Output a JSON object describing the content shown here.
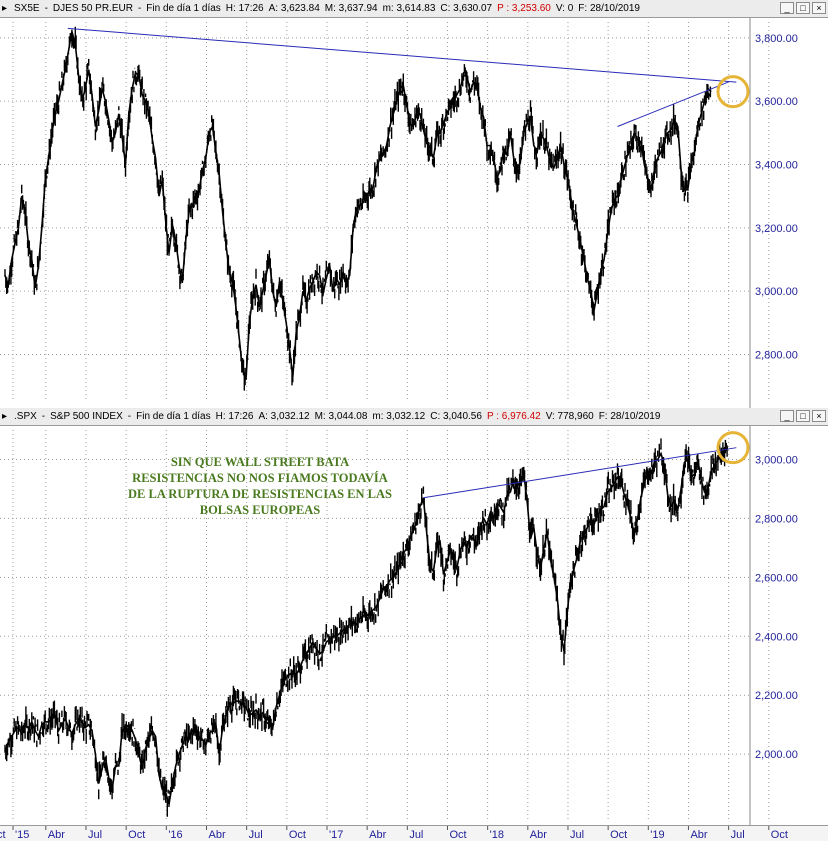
{
  "top_panel": {
    "header": {
      "symbol": "SX5E",
      "name": "DJES 50 PR.EUR",
      "period": "Fin de día 1 días",
      "h": "H: 17:26",
      "a": "A: 3,623.84",
      "m": "M: 3,637.94",
      "mm": "m: 3,614.83",
      "c": "C: 3,630.07",
      "p": "P : 3,253.60",
      "v": "V: 0",
      "f": "F: 28/10/2019"
    }
  },
  "bottom_panel": {
    "header": {
      "symbol": ".SPX",
      "name": "S&P 500 INDEX",
      "period": "Fin de día 1 días",
      "h": "H: 17:26",
      "a": "A: 3,032.12",
      "m": "M: 3,044.08",
      "mm": "m: 3,032.12",
      "c": "C: 3,040.56",
      "p": "P : 6,976.42",
      "v": "V: 778,960",
      "f": "F: 28/10/2019"
    },
    "annotation": "SIN QUE WALL STREET BATA RESISTENCIAS NO NOS FIAMOS TODAVÍA DE LA RUPTURA DE RESISTENCIAS EN LAS BOLSAS EUROPEAS"
  },
  "window_buttons": {
    "minimize": "_",
    "maximize": "□",
    "close": "×"
  },
  "colors": {
    "price": "#000000",
    "trendline": "#2a2ab8",
    "highlight": "#e6b436",
    "grid": "#9c9c9c",
    "axis_text": "#1f1f9a",
    "annotation": "#4a7a1e"
  },
  "chart_data": [
    {
      "type": "line",
      "title": "SX5E - DJES 50 PR.EUR",
      "ylim": [
        2650,
        3850
      ],
      "y_ticks": [
        2800,
        3000,
        3200,
        3400,
        3600,
        3800
      ],
      "y_tick_labels": [
        "2,800.00",
        "3,000.00",
        "3,200.00",
        "3,400.00",
        "3,600.00",
        "3,800.00"
      ],
      "x_months_from_jan2015": [
        0,
        1,
        2,
        3,
        4,
        5,
        6,
        7,
        8,
        9,
        10,
        11,
        12,
        13,
        14,
        15,
        16,
        17,
        18,
        19,
        20,
        21,
        22,
        23,
        24,
        25,
        26,
        27,
        28,
        29,
        30,
        31,
        32,
        33,
        34,
        35,
        36,
        37,
        38,
        39,
        40,
        41,
        42,
        43,
        44,
        45,
        46,
        47,
        48,
        49,
        50,
        51,
        52,
        53,
        54,
        55,
        56,
        57,
        58,
        59,
        60,
        61,
        62,
        63,
        64,
        65,
        66,
        67,
        68,
        69,
        70,
        71,
        72,
        73,
        74,
        75,
        76,
        77,
        78,
        79,
        80,
        81,
        82,
        83,
        84,
        85,
        86,
        87,
        88,
        89,
        90,
        91,
        92,
        93,
        94,
        95,
        96,
        97,
        98,
        99,
        100,
        101,
        102,
        103,
        104,
        105,
        106,
        107,
        108,
        109,
        110,
        111,
        112,
        113,
        114,
        115,
        116,
        117,
        118,
        119,
        120,
        121,
        122,
        123,
        124,
        125,
        126,
        127,
        128,
        129,
        130,
        131,
        132,
        133,
        134,
        135,
        136,
        137,
        138,
        139,
        140,
        141,
        142,
        143,
        144,
        145,
        146,
        147,
        148,
        149,
        150,
        151,
        152,
        153,
        154,
        155,
        156,
        157,
        158,
        159,
        160,
        161,
        162,
        163,
        164,
        165,
        166,
        167,
        168,
        169,
        170,
        171,
        172,
        173,
        174,
        175,
        176,
        177,
        178,
        179,
        180,
        181,
        182,
        183,
        184,
        185,
        186,
        187,
        188,
        189,
        190,
        191,
        192,
        193,
        194,
        195,
        196,
        197,
        198,
        199,
        200,
        201,
        202,
        203,
        204,
        205,
        206,
        207,
        208,
        209,
        210,
        211,
        212,
        213,
        214,
        215,
        216,
        217,
        218,
        219
      ],
      "x_scale_note_months_per_step": 0.25,
      "series": [
        {
          "values": [
            3050,
            3020,
            3100,
            3150,
            3200,
            3300,
            3250,
            3150,
            3100,
            3010,
            3080,
            3200,
            3350,
            3420,
            3500,
            3560,
            3600,
            3650,
            3700,
            3760,
            3820,
            3780,
            3680,
            3600,
            3640,
            3700,
            3620,
            3520,
            3570,
            3640,
            3600,
            3540,
            3470,
            3500,
            3560,
            3490,
            3400,
            3560,
            3640,
            3690,
            3680,
            3620,
            3600,
            3560,
            3480,
            3420,
            3300,
            3350,
            3220,
            3120,
            3210,
            3160,
            3080,
            3030,
            3160,
            3250,
            3270,
            3300,
            3320,
            3380,
            3420,
            3500,
            3520,
            3440,
            3370,
            3250,
            3150,
            3060,
            3030,
            2950,
            2850,
            2750,
            2720,
            2900,
            2980,
            3020,
            2950,
            3000,
            3050,
            3100,
            3000,
            2950,
            3030,
            2970,
            2900,
            2820,
            2730,
            2870,
            2920,
            3000,
            2970,
            3010,
            3030,
            3060,
            3050,
            2990,
            3040,
            3080,
            3000,
            3040,
            3020,
            3060,
            3030,
            3050,
            3200,
            3260,
            3270,
            3280,
            3300,
            3320,
            3330,
            3390,
            3420,
            3430,
            3460,
            3520,
            3560,
            3600,
            3640,
            3650,
            3590,
            3530,
            3520,
            3560,
            3560,
            3510,
            3470,
            3450,
            3420,
            3490,
            3500,
            3530,
            3560,
            3580,
            3600,
            3620,
            3640,
            3680,
            3680,
            3630,
            3660,
            3650,
            3580,
            3550,
            3460,
            3460,
            3420,
            3360,
            3380,
            3450,
            3430,
            3500,
            3420,
            3380,
            3410,
            3500,
            3530,
            3550,
            3460,
            3440,
            3500,
            3480,
            3450,
            3400,
            3390,
            3420,
            3460,
            3400,
            3360,
            3300,
            3240,
            3200,
            3150,
            3100,
            3040,
            3000,
            2940,
            3000,
            3060,
            3100,
            3180,
            3250,
            3290,
            3300,
            3350,
            3390,
            3430,
            3450,
            3500,
            3480,
            3470,
            3400,
            3360,
            3320,
            3380,
            3420,
            3440,
            3480,
            3500,
            3510,
            3540,
            3520,
            3380,
            3320,
            3320,
            3400,
            3440,
            3520,
            3560,
            3600,
            3640,
            3630
          ]
        }
      ],
      "trendlines": [
        {
          "from": [
            18.75,
            3830
          ],
          "to": [
            216.5,
            3620
          ],
          "extends_to": [
            218.5,
            3660
          ]
        },
        {
          "from": [
            183,
            3520
          ],
          "to": [
            216,
            3660
          ]
        }
      ]
    },
    {
      "type": "line",
      "title": ".SPX - S&P 500 INDEX",
      "ylim": [
        1780,
        3100
      ],
      "y_ticks": [
        2000,
        2200,
        2400,
        2600,
        2800,
        3000
      ],
      "y_tick_labels": [
        "2,000.00",
        "2,200.00",
        "2,400.00",
        "2,600.00",
        "2,800.00",
        "3,000.00"
      ],
      "x_months_from_jan2015": [
        0,
        1,
        2,
        3,
        4,
        5,
        6,
        7,
        8,
        9,
        10,
        11,
        12,
        13,
        14,
        15,
        16,
        17,
        18,
        19,
        20,
        21,
        22,
        23,
        24,
        25,
        26,
        27,
        28,
        29,
        30,
        31,
        32,
        33,
        34,
        35,
        36,
        37,
        38,
        39,
        40,
        41,
        42,
        43,
        44,
        45,
        46,
        47,
        48,
        49,
        50,
        51,
        52,
        53,
        54,
        55,
        56,
        57,
        58,
        59,
        60,
        61,
        62,
        63,
        64,
        65,
        66,
        67,
        68,
        69,
        70,
        71,
        72,
        73,
        74,
        75,
        76,
        77,
        78,
        79,
        80,
        81,
        82,
        83,
        84,
        85,
        86,
        87,
        88,
        89,
        90,
        91,
        92,
        93,
        94,
        95,
        96,
        97,
        98,
        99,
        100,
        101,
        102,
        103,
        104,
        105,
        106,
        107,
        108,
        109,
        110,
        111,
        112,
        113,
        114,
        115,
        116,
        117,
        118,
        119,
        120,
        121,
        122,
        123,
        124,
        125,
        126,
        127,
        128,
        129,
        130,
        131,
        132,
        133,
        134,
        135,
        136,
        137,
        138,
        139,
        140,
        141,
        142,
        143,
        144,
        145,
        146,
        147,
        148,
        149,
        150,
        151,
        152,
        153,
        154,
        155,
        156,
        157,
        158,
        159,
        160,
        161,
        162,
        163,
        164,
        165,
        166,
        167,
        168,
        169,
        170,
        171,
        172,
        173,
        174,
        175,
        176,
        177,
        178,
        179,
        180,
        181,
        182,
        183,
        184,
        185,
        186,
        187,
        188,
        189,
        190,
        191,
        192,
        193,
        194,
        195,
        196,
        197,
        198,
        199,
        200,
        201,
        202,
        203,
        204,
        205,
        206,
        207,
        208,
        209,
        210,
        211,
        212,
        213,
        214,
        215,
        216,
        217,
        218,
        219
      ],
      "series": [
        {
          "values": [
            2010,
            2040,
            2060,
            2080,
            2090,
            2070,
            2100,
            2090,
            2110,
            2080,
            2060,
            2100,
            2110,
            2110,
            2120,
            2130,
            2080,
            2100,
            2120,
            2090,
            2070,
            2100,
            2120,
            2110,
            2090,
            2100,
            2080,
            2000,
            1900,
            1950,
            1990,
            1920,
            1880,
            1960,
            1960,
            2080,
            2090,
            2100,
            2080,
            2050,
            2000,
            1950,
            2020,
            2050,
            2080,
            2060,
            1930,
            1880,
            1870,
            1830,
            1900,
            1960,
            2000,
            2030,
            2060,
            2050,
            2080,
            2090,
            2060,
            2050,
            2030,
            2070,
            2080,
            2100,
            2000,
            2090,
            2130,
            2170,
            2170,
            2180,
            2180,
            2170,
            2160,
            2130,
            2140,
            2150,
            2130,
            2140,
            2110,
            2100,
            2090,
            2160,
            2200,
            2240,
            2260,
            2270,
            2280,
            2270,
            2290,
            2320,
            2340,
            2360,
            2380,
            2360,
            2340,
            2350,
            2380,
            2390,
            2400,
            2400,
            2410,
            2420,
            2430,
            2440,
            2450,
            2440,
            2460,
            2470,
            2470,
            2480,
            2490,
            2500,
            2530,
            2560,
            2570,
            2590,
            2600,
            2620,
            2650,
            2680,
            2700,
            2730,
            2760,
            2790,
            2840,
            2870,
            2750,
            2640,
            2620,
            2700,
            2720,
            2610,
            2650,
            2690,
            2660,
            2630,
            2690,
            2720,
            2700,
            2740,
            2730,
            2710,
            2770,
            2800,
            2780,
            2820,
            2800,
            2850,
            2840,
            2820,
            2880,
            2890,
            2930,
            2910,
            2920,
            2950,
            2860,
            2730,
            2770,
            2680,
            2630,
            2700,
            2750,
            2660,
            2600,
            2530,
            2410,
            2350,
            2480,
            2590,
            2630,
            2670,
            2730,
            2740,
            2770,
            2800,
            2780,
            2810,
            2830,
            2840,
            2890,
            2900,
            2920,
            2940,
            2930,
            2880,
            2850,
            2800,
            2740,
            2800,
            2870,
            2920,
            2960,
            2950,
            2990,
            3000,
            3020,
            2980,
            2880,
            2840,
            2860,
            2830,
            2900,
            2990,
            3000,
            2940,
            2950,
            3000,
            2930,
            2890,
            2900,
            2960,
            2980,
            3000,
            3010,
            3040,
            3040
          ],
          "start_value": 2010
        }
      ],
      "trendlines": [
        {
          "from": [
            125,
            2870
          ],
          "to": [
            218.5,
            3040
          ]
        }
      ]
    }
  ],
  "x_axis": {
    "labels": [
      {
        "text": "'15",
        "pos": 0.6
      },
      {
        "text": "Abr",
        "pos": 3.05
      },
      {
        "text": "Jul",
        "pos": 6.05
      },
      {
        "text": "Oct",
        "pos": 9.05
      },
      {
        "text": "'16",
        "pos": 12.05
      },
      {
        "text": "Abr",
        "pos": 15.05
      },
      {
        "text": "Jul",
        "pos": 18.05
      },
      {
        "text": "Oct",
        "pos": 21.05
      },
      {
        "text": "'17",
        "pos": 24.05
      },
      {
        "text": "Abr",
        "pos": 27.05
      },
      {
        "text": "Jul",
        "pos": 30.05
      },
      {
        "text": "Oct",
        "pos": 33.05
      },
      {
        "text": "'18",
        "pos": 36.05
      },
      {
        "text": "Abr",
        "pos": 39.05
      },
      {
        "text": "Jul",
        "pos": 42.05
      },
      {
        "text": "Oct",
        "pos": 45.05
      },
      {
        "text": "'19",
        "pos": 48.05
      },
      {
        "text": "Abr",
        "pos": 51.05
      },
      {
        "text": "Jul",
        "pos": 54.05
      },
      {
        "text": "Oct",
        "pos": 57.05
      }
    ],
    "start_label": "ct"
  }
}
